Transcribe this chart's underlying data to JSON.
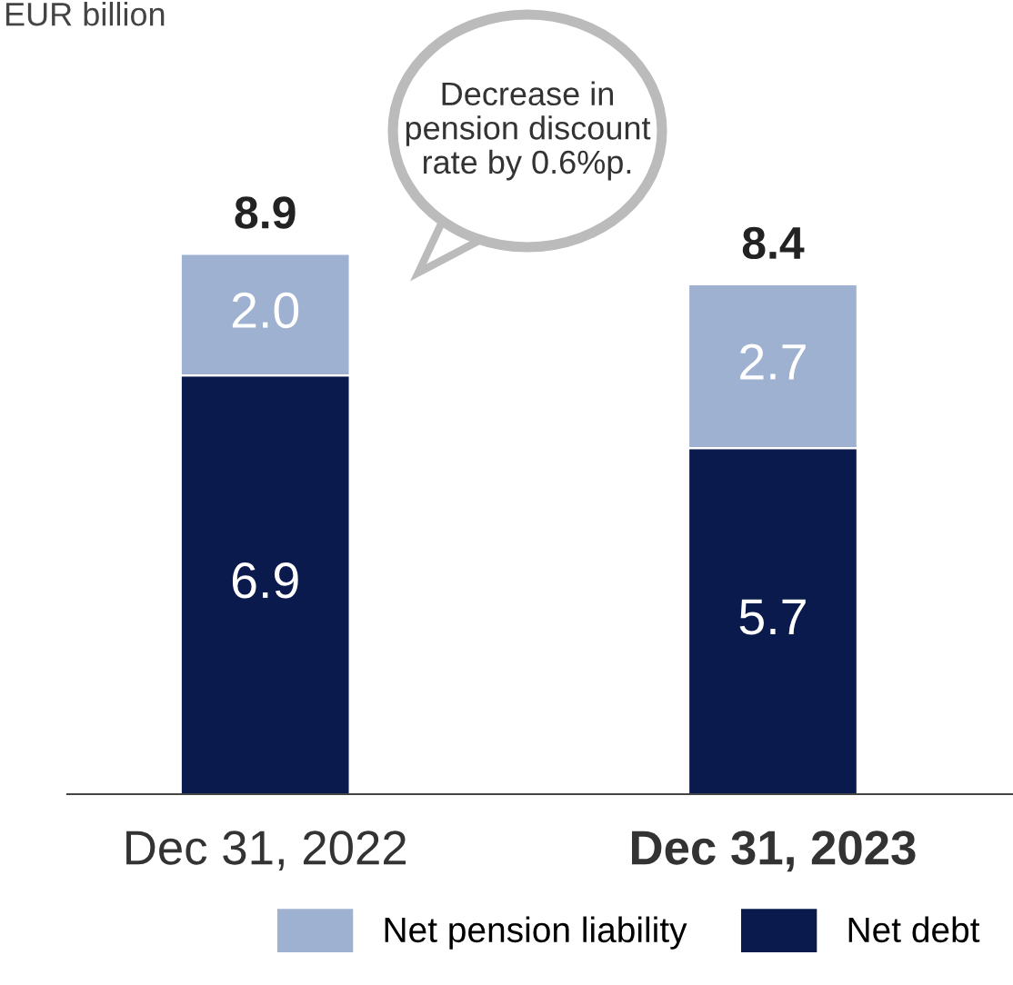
{
  "chart_data": {
    "type": "bar",
    "stacked": true,
    "categories": [
      "Dec 31, 2022",
      "Dec 31, 2023"
    ],
    "series": [
      {
        "name": "Net debt",
        "color": "#0b1a4d",
        "values": [
          6.9,
          5.7
        ],
        "value_labels": [
          "6.9",
          "5.7"
        ]
      },
      {
        "name": "Net pension liability",
        "color": "#9fb1d0",
        "values": [
          2.0,
          2.7
        ],
        "value_labels": [
          "2.0",
          "2.7"
        ]
      }
    ],
    "totals": [
      "8.9",
      "8.4"
    ],
    "annotations": [
      "EUR billion",
      "Decrease in pension discount rate by 0.6%p."
    ],
    "legend": "bottom",
    "grid": false
  }
}
